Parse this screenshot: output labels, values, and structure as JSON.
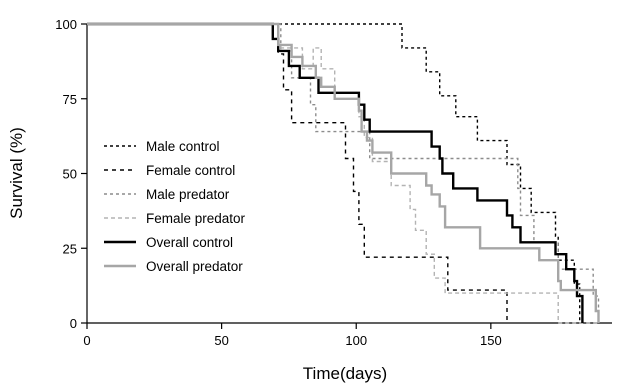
{
  "chart_data": {
    "type": "line",
    "step": true,
    "xlabel": "Time(days)",
    "ylabel": "Survival (%)",
    "xlim": [
      0,
      195
    ],
    "ylim": [
      0,
      100
    ],
    "xticks": [
      0,
      50,
      100,
      150
    ],
    "yticks": [
      0,
      25,
      50,
      75,
      100
    ],
    "grid": false,
    "legend_position": "left-middle",
    "series": [
      {
        "name": "Male control",
        "color": "#000000",
        "dash": "3,3",
        "width": 1.4,
        "x": [
          0,
          100,
          117,
          126,
          131,
          137,
          145,
          156,
          161,
          165,
          174,
          175,
          181,
          183
        ],
        "y": [
          100,
          100,
          92,
          84,
          76,
          69,
          61,
          53,
          45,
          37,
          29,
          21,
          13,
          0
        ]
      },
      {
        "name": "Female control",
        "color": "#000000",
        "dash": "4,4",
        "width": 1.4,
        "x": [
          0,
          67,
          71,
          73,
          75,
          76,
          79,
          92,
          96,
          99,
          101,
          103,
          105,
          134,
          156
        ],
        "y": [
          100,
          100,
          90,
          78,
          78,
          67,
          67,
          67,
          55,
          44,
          33,
          22,
          22,
          11,
          0
        ]
      },
      {
        "name": "Male predator",
        "color": "#8c8c8c",
        "dash": "3,3",
        "width": 1.4,
        "x": [
          0,
          68,
          72,
          76,
          80,
          83,
          85,
          101,
          105,
          110,
          116,
          127,
          131,
          146,
          160,
          161,
          166,
          174,
          175,
          183,
          188,
          190
        ],
        "y": [
          100,
          100,
          91,
          82,
          82,
          73,
          64,
          64,
          55,
          55,
          55,
          55,
          55,
          55,
          45,
          36,
          27,
          27,
          18,
          18,
          9,
          0
        ]
      },
      {
        "name": "Female predator",
        "color": "#b3b3b3",
        "dash": "4,3",
        "width": 1.4,
        "x": [
          0,
          68,
          71,
          76,
          80,
          84,
          87,
          92,
          101,
          103,
          106,
          109,
          113,
          120,
          122,
          126,
          129,
          133,
          140,
          163,
          174,
          175,
          190
        ],
        "y": [
          100,
          100,
          92,
          92,
          85,
          92,
          85,
          77,
          69,
          62,
          54,
          54,
          46,
          38,
          31,
          23,
          15,
          10,
          10,
          10,
          10,
          0,
          0
        ]
      },
      {
        "name": "Overall control",
        "color": "#000000",
        "dash": "",
        "width": 2.4,
        "x": [
          0,
          67,
          69,
          71,
          75,
          79,
          82,
          86,
          91,
          98,
          101,
          103,
          105,
          113,
          128,
          131,
          132,
          136,
          145,
          156,
          158,
          161,
          174,
          178,
          181,
          182,
          184
        ],
        "y": [
          100,
          100,
          95,
          91,
          86,
          82,
          82,
          77,
          77,
          77,
          73,
          68,
          64,
          64,
          59,
          55,
          50,
          45,
          41,
          36,
          32,
          27,
          23,
          18,
          14,
          9,
          0
        ]
      },
      {
        "name": "Overall predator",
        "color": "#a6a6a6",
        "dash": "",
        "width": 2.4,
        "x": [
          0,
          68,
          71,
          76,
          80,
          85,
          87,
          92,
          101,
          102,
          104,
          106,
          113,
          126,
          128,
          131,
          133,
          146,
          160,
          168,
          175,
          176,
          183,
          189,
          190
        ],
        "y": [
          100,
          100,
          93,
          89,
          86,
          82,
          79,
          75,
          71,
          64,
          61,
          57,
          50,
          46,
          43,
          39,
          32,
          25,
          25,
          21,
          14,
          11,
          11,
          4,
          0
        ]
      }
    ]
  }
}
